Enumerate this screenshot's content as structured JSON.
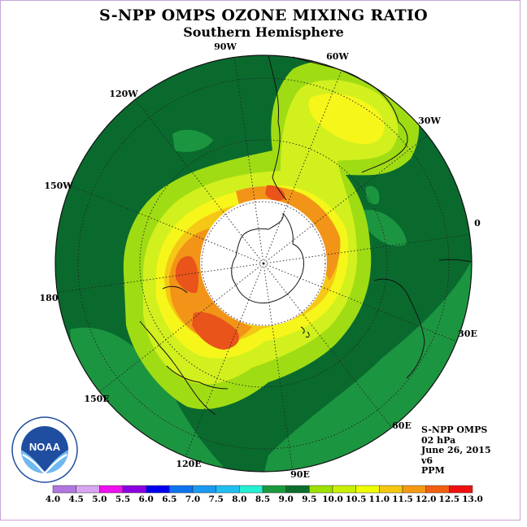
{
  "title": "S-NPP OMPS OZONE MIXING RATIO",
  "subtitle": "Southern Hemisphere",
  "longitude_labels": [
    "90W",
    "60W",
    "30W",
    "0",
    "30E",
    "60E",
    "90E",
    "120E",
    "150E",
    "180",
    "150W",
    "120W"
  ],
  "info": {
    "instrument": "S-NPP OMPS",
    "level": "02 hPa",
    "date": "June 26, 2015",
    "version": "v6",
    "units": "PPM"
  },
  "logo_text": "NOAA",
  "colorbar": {
    "ticks": [
      "4.0",
      "4.5",
      "5.0",
      "5.5",
      "6.0",
      "6.5",
      "7.0",
      "7.5",
      "8.0",
      "8.5",
      "9.0",
      "9.5",
      "10.0",
      "10.5",
      "11.0",
      "11.5",
      "12.0",
      "12.5",
      "13.0"
    ],
    "colors": [
      "#b276e0",
      "#d9a6f2",
      "#ee10ee",
      "#8a00e0",
      "#0000ee",
      "#1073ee",
      "#1a9bf0",
      "#21bef2",
      "#24f0d4",
      "#1a9a3c",
      "#0b6e2a",
      "#9ee000",
      "#c8f000",
      "#f0ff00",
      "#f5c810",
      "#f59a10",
      "#f06010",
      "#ee1010",
      "#8a4a2a"
    ]
  },
  "map_colors": {
    "ring": "#0a6a2e",
    "mid": "#1c9540",
    "lime": "#a0dc14",
    "ygreen": "#d2f01e",
    "yellow": "#f6f61a",
    "gold": "#f4c814",
    "orange": "#f29418",
    "redorange": "#e8541a",
    "grid": "#222222",
    "coast": "#111111"
  }
}
